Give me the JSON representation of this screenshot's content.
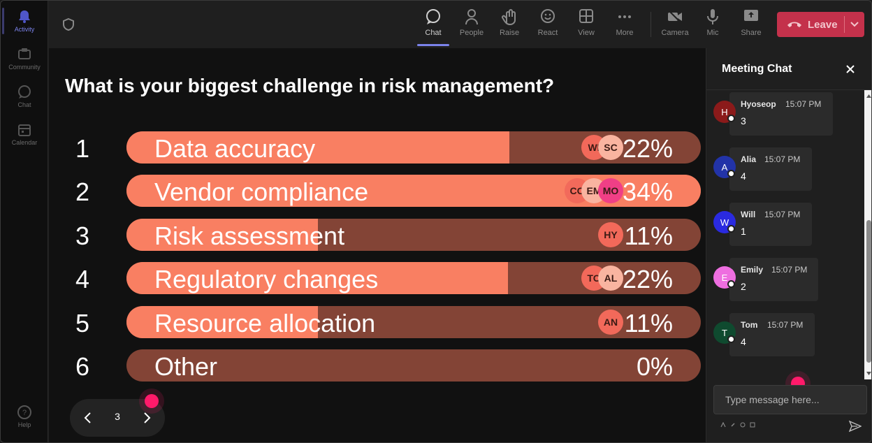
{
  "rail": {
    "items": [
      {
        "id": "activity",
        "label": "Activity",
        "icon": "bell-icon"
      },
      {
        "id": "community",
        "label": "Community",
        "icon": "community-icon"
      },
      {
        "id": "chat",
        "label": "Chat",
        "icon": "chat-icon"
      },
      {
        "id": "calendar",
        "label": "Calendar",
        "icon": "calendar-icon"
      }
    ],
    "help_label": "Help"
  },
  "toolbar": {
    "chat_label": "Chat",
    "people_label": "People",
    "raise_label": "Raise",
    "react_label": "React",
    "view_label": "View",
    "more_label": "More",
    "camera_label": "Camera",
    "mic_label": "Mic",
    "share_label": "Share",
    "leave_label": "Leave"
  },
  "poll": {
    "question": "What is your biggest challenge in risk management?",
    "options": [
      {
        "num": "1",
        "label": "Data accuracy",
        "percent": "22%",
        "fill": 0.667,
        "avatars": [
          {
            "initials": "WI",
            "color": "#f2695a"
          },
          {
            "initials": "SC",
            "color": "#f9b4a0"
          }
        ]
      },
      {
        "num": "2",
        "label": "Vendor compliance",
        "percent": "34%",
        "fill": 1.0,
        "avatars": [
          {
            "initials": "CO",
            "color": "#f26a5b"
          },
          {
            "initials": "EM",
            "color": "#f9b3a0"
          },
          {
            "initials": "MO",
            "color": "#f03f86"
          }
        ]
      },
      {
        "num": "3",
        "label": "Risk assessment",
        "percent": "11%",
        "fill": 0.333,
        "avatars": [
          {
            "initials": "HY",
            "color": "#f2695a"
          }
        ]
      },
      {
        "num": "4",
        "label": "Regulatory changes",
        "percent": "22%",
        "fill": 0.664,
        "avatars": [
          {
            "initials": "TO",
            "color": "#f2695a"
          },
          {
            "initials": "AL",
            "color": "#f9b4a0"
          }
        ]
      },
      {
        "num": "5",
        "label": "Resource allocation",
        "percent": "11%",
        "fill": 0.333,
        "avatars": [
          {
            "initials": "AN",
            "color": "#f2695a"
          }
        ]
      },
      {
        "num": "6",
        "label": "Other",
        "percent": "0%",
        "fill": 0,
        "avatars": []
      }
    ],
    "page": "3"
  },
  "chat": {
    "title": "Meeting Chat",
    "messages": [
      {
        "initial": "H",
        "name": "Hyoseop",
        "time": "15:07 PM",
        "body": "3",
        "color": "#8b1a1a"
      },
      {
        "initial": "A",
        "name": "Alia",
        "time": "15:07 PM",
        "body": "4",
        "color": "#2233a8"
      },
      {
        "initial": "W",
        "name": "Will",
        "time": "15:07 PM",
        "body": "1",
        "color": "#2a2ae0"
      },
      {
        "initial": "E",
        "name": "Emily",
        "time": "15:07 PM",
        "body": "2",
        "color": "#ee6ee0"
      },
      {
        "initial": "T",
        "name": "Tom",
        "time": "15:07 PM",
        "body": "4",
        "color": "#0f4a2f"
      }
    ],
    "input_placeholder": "Type message here..."
  }
}
